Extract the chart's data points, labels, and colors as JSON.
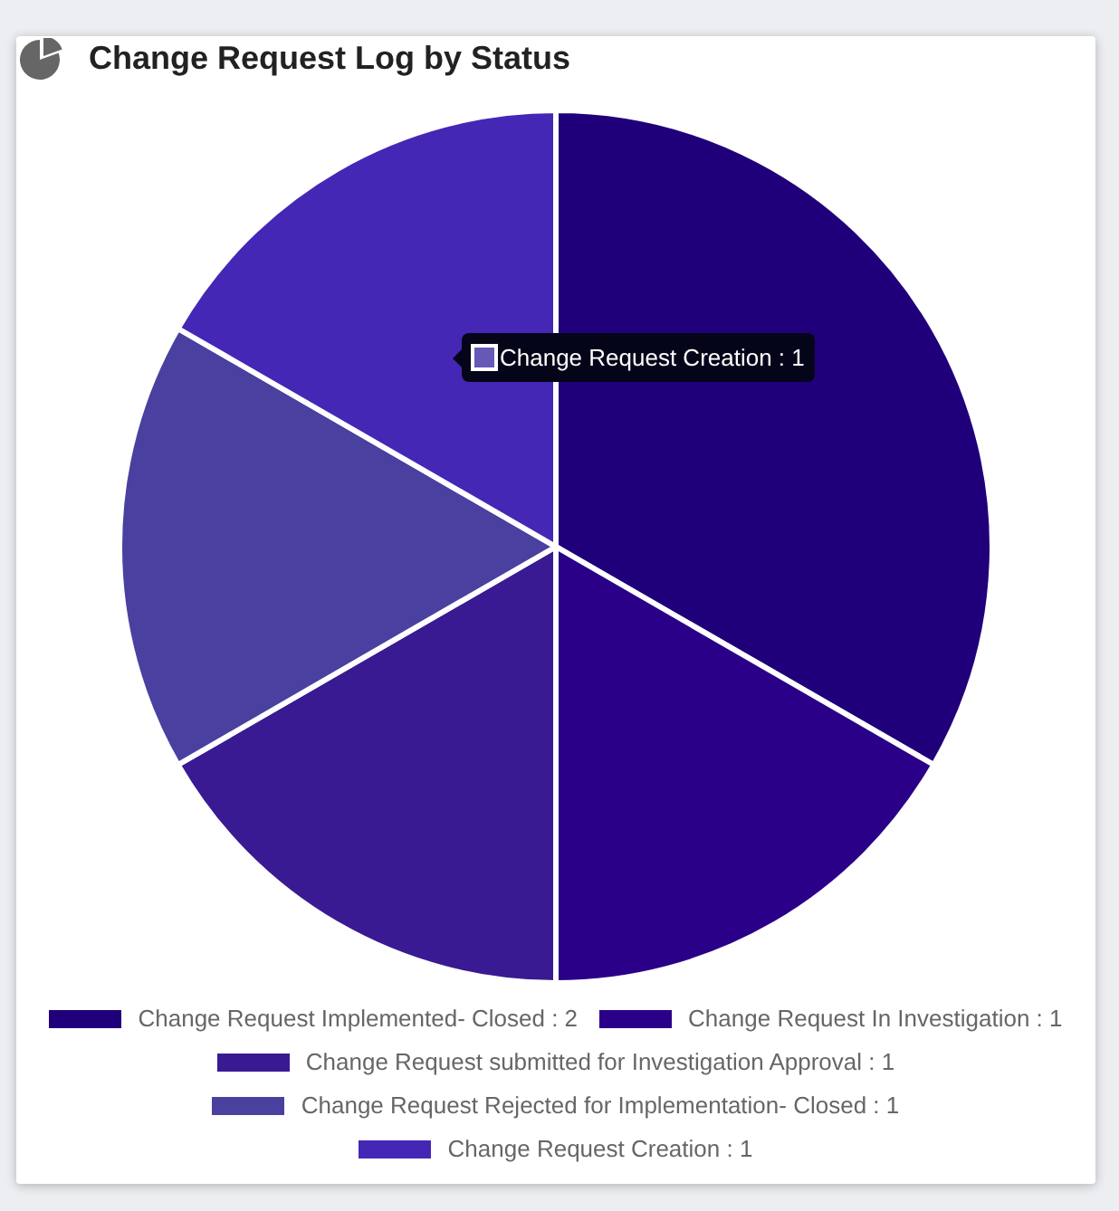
{
  "chart_data": {
    "type": "pie",
    "title": "Change Request Log by Status",
    "categories": [
      "Change Request Implemented- Closed : 2",
      "Change Request In Investigation : 1",
      "Change Request submitted for Investigation Approval : 1",
      "Change Request Rejected for Implementation- Closed : 1",
      "Change Request Creation : 1"
    ],
    "values": [
      2,
      1,
      1,
      1,
      1
    ],
    "colors": [
      "#20007a",
      "#2a0088",
      "#3a1a92",
      "#4a40a0",
      "#4527b5"
    ],
    "legend": "bottom",
    "annotations": [
      "Change Request Creation : 1"
    ]
  }
}
